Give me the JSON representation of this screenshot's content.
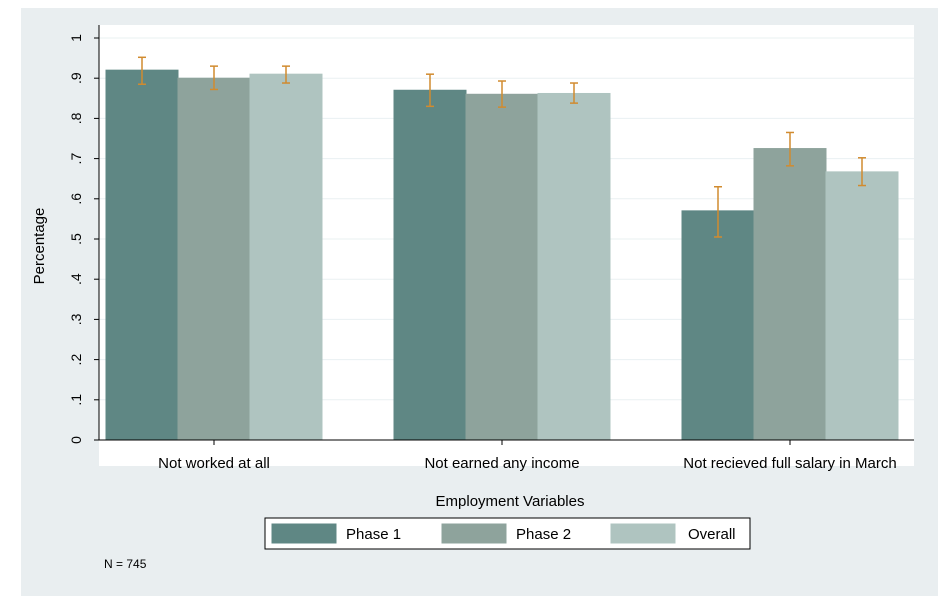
{
  "chart_data": {
    "type": "bar",
    "categories": [
      "Not worked at all",
      "Not earned any income",
      "Not recieved full salary in March"
    ],
    "series": [
      {
        "name": "Phase 1",
        "values": [
          0.92,
          0.87,
          0.57
        ],
        "ci_low": [
          0.885,
          0.83,
          0.505
        ],
        "ci_high": [
          0.952,
          0.91,
          0.63
        ]
      },
      {
        "name": "Phase 2",
        "values": [
          0.9,
          0.86,
          0.725
        ],
        "ci_low": [
          0.872,
          0.828,
          0.682
        ],
        "ci_high": [
          0.93,
          0.893,
          0.765
        ]
      },
      {
        "name": "Overall",
        "values": [
          0.91,
          0.862,
          0.667
        ],
        "ci_low": [
          0.888,
          0.838,
          0.633
        ],
        "ci_high": [
          0.93,
          0.888,
          0.702
        ]
      }
    ],
    "xlabel": "Employment Variables",
    "ylabel": "Percentage",
    "ylim": [
      0,
      1
    ],
    "yticks": [
      "0",
      ".1",
      ".2",
      ".3",
      ".4",
      ".5",
      ".6",
      ".7",
      ".8",
      ".9",
      "1"
    ],
    "colors": [
      "#5f8784",
      "#8ea39c",
      "#afc4c0"
    ],
    "error_bar_color": "#d18b2f",
    "grid": true,
    "legend": "bottom",
    "note": "N = 745"
  }
}
